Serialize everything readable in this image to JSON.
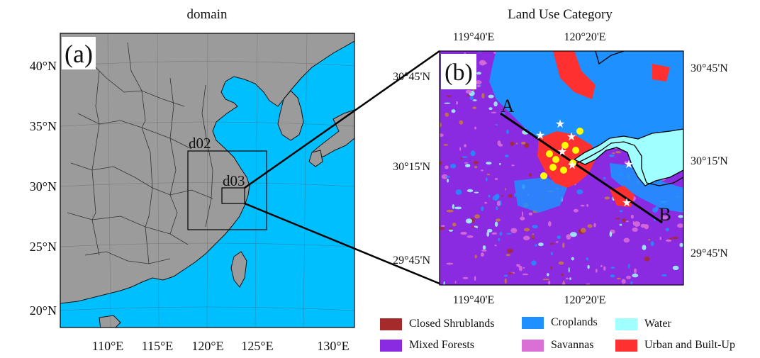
{
  "panel_a": {
    "title": "domain",
    "label": "(a)",
    "lat_ticks": [
      "40°N",
      "35°N",
      "30°N",
      "25°N",
      "20°N"
    ],
    "lon_ticks": [
      "110°E",
      "115°E",
      "120°E",
      "125°E",
      "130°E"
    ],
    "domain_labels": [
      "d02",
      "d03"
    ],
    "colors": {
      "land": "#9b9b9b",
      "ocean": "#00bfff",
      "border": "#222222"
    }
  },
  "panel_b": {
    "title": "Land Use Category",
    "label": "(b)",
    "top_lon_ticks": [
      "119°40'E",
      "120°20'E"
    ],
    "bottom_lon_ticks": [
      "119°40'E",
      "120°20'E"
    ],
    "left_lat_ticks": [
      "30°45'N",
      "30°15'N",
      "29°45'N"
    ],
    "right_lat_ticks": [
      "30°45'N",
      "30°15'N",
      "29°45'N"
    ],
    "transect_start": "A",
    "transect_end": "B"
  },
  "legend": [
    {
      "label": "Closed Shrublands",
      "color": "#a52a2a"
    },
    {
      "label": "Croplands",
      "color": "#1e90ff"
    },
    {
      "label": "Water",
      "color": "#a0ffff"
    },
    {
      "label": "Mixed Forests",
      "color": "#8a2be2"
    },
    {
      "label": "Savannas",
      "color": "#da70d6"
    },
    {
      "label": "Urban and Built-Up",
      "color": "#ff3030"
    }
  ]
}
